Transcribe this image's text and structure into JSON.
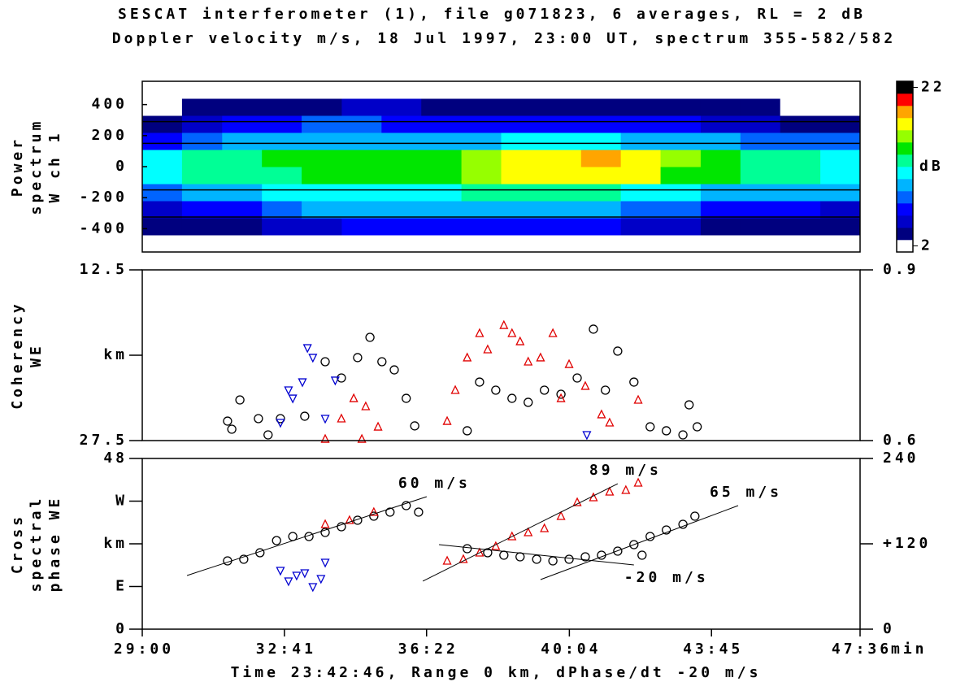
{
  "chart_data": [
    {
      "type": "heatmap",
      "title": "SESCAT interferometer (1), file g071823, 6 averages, RL = 2 dB",
      "subtitle": "Doppler velocity m/s, 18 Jul 1997, 23:00 UT, spectrum 355-582/582",
      "ylabel": [
        "Power",
        "spectrum",
        "W ch 1"
      ],
      "xlim": [
        29,
        47.6
      ],
      "ylim": [
        -550,
        550
      ],
      "yticks": [
        -400,
        -200,
        0,
        200,
        400
      ],
      "hlines": [
        290,
        150,
        -150,
        -325
      ],
      "xbins": [
        29,
        30.03,
        31.07,
        32.1,
        33.13,
        34.17,
        35.2,
        36.23,
        37.27,
        38.3,
        39.33,
        40.37,
        41.4,
        42.43,
        43.47,
        44.5,
        45.53,
        46.57,
        47.6
      ],
      "ybins": [
        -550,
        -440,
        -330,
        -220,
        -110,
        0,
        110,
        220,
        330,
        440,
        550
      ],
      "values": [
        [
          2,
          2,
          2,
          2,
          2,
          2,
          2,
          2,
          2,
          2,
          2,
          2,
          2,
          2,
          2,
          2,
          2,
          2
        ],
        [
          3,
          4,
          4,
          5,
          5,
          6,
          6,
          6,
          6,
          6,
          6,
          6,
          5,
          5,
          4,
          4,
          4,
          3
        ],
        [
          5,
          6,
          7,
          8,
          9,
          9,
          9,
          9,
          9,
          9,
          9,
          9,
          8,
          8,
          7,
          6,
          6,
          5
        ],
        [
          8,
          9,
          10,
          11,
          11,
          11,
          11,
          11,
          12,
          12,
          12,
          12,
          11,
          11,
          10,
          9,
          9,
          9
        ],
        [
          11,
          12,
          13,
          13,
          14,
          14,
          14,
          15,
          16,
          17,
          18,
          18,
          17,
          15,
          14,
          13,
          12,
          11
        ],
        [
          11,
          12,
          13,
          14,
          14,
          14,
          15,
          15,
          16,
          17,
          18,
          19,
          17,
          16,
          14,
          13,
          12,
          11
        ],
        [
          7,
          8,
          9,
          10,
          10,
          10,
          10,
          10,
          10,
          11,
          11,
          11,
          10,
          10,
          9,
          8,
          8,
          8
        ],
        [
          4,
          5,
          6,
          7,
          8,
          8,
          7,
          7,
          7,
          7,
          7,
          7,
          6,
          6,
          5,
          5,
          4,
          4
        ],
        [
          2,
          3,
          3,
          4,
          4,
          5,
          5,
          4,
          4,
          4,
          4,
          4,
          4,
          4,
          3,
          3,
          2,
          2
        ],
        [
          2,
          2,
          2,
          2,
          2,
          2,
          2,
          2,
          2,
          2,
          2,
          2,
          2,
          2,
          2,
          2,
          2,
          2
        ]
      ],
      "clim": [
        2,
        22
      ],
      "cticks": [
        2,
        22
      ],
      "clabel": "dB",
      "colorscale": [
        "#ffffff",
        "#00007f",
        "#0000c8",
        "#0000ff",
        "#0064ff",
        "#00b4ff",
        "#00ffff",
        "#00ff96",
        "#00e600",
        "#96ff00",
        "#ffff00",
        "#ffa500",
        "#ff0000",
        "#000000"
      ]
    },
    {
      "type": "scatter",
      "ylabel": [
        "Coherency",
        "WE"
      ],
      "xlim": [
        29,
        47.6
      ],
      "ylim": [
        27.5,
        12.5
      ],
      "yticks": [
        27.5,
        {
          "value": 20,
          "label": "km"
        },
        12.5
      ],
      "y2lim": [
        0.6,
        0.9
      ],
      "y2ticks": [
        0.6,
        0.9
      ],
      "series": [
        {
          "color": "#000000",
          "marker": "circle",
          "x": [
            31.21,
            31.53,
            31.32,
            32.01,
            32.26,
            32.58,
            33.21,
            33.74,
            34.16,
            34.58,
            34.9,
            35.21,
            35.53,
            35.84,
            36.06,
            37.42,
            37.74,
            38.16,
            38.58,
            39.0,
            39.42,
            39.85,
            40.27,
            40.69,
            41.0,
            41.32,
            41.74,
            42.16,
            42.58,
            43.01,
            43.17,
            43.38
          ],
          "values": [
            25.79,
            23.93,
            26.5,
            25.57,
            27.0,
            25.57,
            25.36,
            20.57,
            22.0,
            20.21,
            18.43,
            20.57,
            21.29,
            23.79,
            26.21,
            26.64,
            22.36,
            23.07,
            23.79,
            24.14,
            23.07,
            23.43,
            22.0,
            17.71,
            23.07,
            19.64,
            22.36,
            26.29,
            26.64,
            27.0,
            24.36,
            26.29
          ]
        },
        {
          "color": "#e00000",
          "marker": "triangle-up",
          "x": [
            33.74,
            34.16,
            34.48,
            34.69,
            35.11,
            34.79,
            36.9,
            37.11,
            37.42,
            37.74,
            37.95,
            38.37,
            38.58,
            38.79,
            39.0,
            39.32,
            39.64,
            39.85,
            40.06,
            40.48,
            40.9,
            41.11,
            41.85
          ],
          "values": [
            27.36,
            25.57,
            23.79,
            27.36,
            26.29,
            24.5,
            25.79,
            23.07,
            20.21,
            18.07,
            19.5,
            17.36,
            18.07,
            18.79,
            20.57,
            20.21,
            18.07,
            23.79,
            20.79,
            22.71,
            25.21,
            25.93,
            23.93
          ]
        },
        {
          "color": "#0000d0",
          "marker": "triangle-down",
          "x": [
            33.28,
            33.42,
            33.15,
            32.79,
            32.9,
            32.58,
            33.74,
            34.0,
            40.52
          ],
          "values": [
            19.36,
            20.21,
            22.36,
            23.07,
            23.79,
            25.93,
            25.57,
            22.21,
            27.0
          ]
        }
      ]
    },
    {
      "type": "scatter",
      "ylabel": [
        "Cross",
        "spectral",
        "phase WE"
      ],
      "xlabel": "Time 23:42:46, Range 0 km, dPhase/dt -20 m/s",
      "xunit": "min",
      "xlim": [
        29,
        47.6
      ],
      "ylim": [
        0,
        48
      ],
      "xticks": [
        {
          "value": 29,
          "label": "29:00"
        },
        {
          "value": 32.683,
          "label": "32:41"
        },
        {
          "value": 36.367,
          "label": "36:22"
        },
        {
          "value": 40.067,
          "label": "40:04"
        },
        {
          "value": 43.75,
          "label": "43:45"
        },
        {
          "value": 47.6,
          "label": "47:36"
        }
      ],
      "yticks": [
        0,
        {
          "value": 12,
          "label": "E"
        },
        {
          "value": 24,
          "label": "km"
        },
        {
          "value": 36,
          "label": "W"
        },
        48
      ],
      "y2lim": [
        0,
        240
      ],
      "y2ticks": [
        0,
        {
          "value": 120,
          "label": "+120"
        },
        240
      ],
      "series": [
        {
          "color": "#000000",
          "marker": "circle",
          "x": [
            31.21,
            31.63,
            32.05,
            32.48,
            32.9,
            33.32,
            33.74,
            34.16,
            34.58,
            35.0,
            35.42,
            35.84,
            36.16,
            37.42,
            37.95,
            38.37,
            38.79,
            39.22,
            39.64,
            40.06,
            40.48,
            40.9,
            41.32,
            41.74,
            41.95,
            42.16,
            42.58,
            43.01,
            43.32
          ],
          "values": [
            19.2,
            19.66,
            21.49,
            24.91,
            26.06,
            26.06,
            27.2,
            28.8,
            30.63,
            31.77,
            32.91,
            34.74,
            32.91,
            22.63,
            21.49,
            20.8,
            20.34,
            19.66,
            19.2,
            19.66,
            20.34,
            20.8,
            21.94,
            23.77,
            20.8,
            26.06,
            27.89,
            29.49,
            31.77
          ]
        },
        {
          "color": "#e00000",
          "marker": "triangle-up",
          "x": [
            33.74,
            34.37,
            35.0,
            36.9,
            37.32,
            37.74,
            38.16,
            38.58,
            39.0,
            39.42,
            39.85,
            40.27,
            40.69,
            41.11,
            41.53,
            41.85
          ],
          "values": [
            29.49,
            30.63,
            32.91,
            19.2,
            19.66,
            21.49,
            23.31,
            26.06,
            27.2,
            28.34,
            31.77,
            35.66,
            37.03,
            38.63,
            39.09,
            41.14
          ]
        },
        {
          "color": "#0000d0",
          "marker": "triangle-down",
          "x": [
            32.58,
            32.79,
            33.0,
            33.21,
            33.42,
            33.63,
            33.74
          ],
          "values": [
            16.46,
            13.49,
            15.09,
            15.77,
            11.89,
            14.17,
            18.74
          ]
        }
      ],
      "fits": [
        {
          "label": "60 m/s",
          "x": [
            30.16,
            36.37
          ],
          "y": [
            15.09,
            37.26
          ]
        },
        {
          "label": "89 m/s",
          "x": [
            36.27,
            41.32
          ],
          "y": [
            13.49,
            40.91
          ]
        },
        {
          "label": "65 m/s",
          "x": [
            39.32,
            44.44
          ],
          "y": [
            13.94,
            34.74
          ]
        },
        {
          "label": "-20 m/s",
          "x": [
            36.69,
            41.74
          ],
          "y": [
            23.77,
            18.06
          ]
        }
      ]
    }
  ]
}
